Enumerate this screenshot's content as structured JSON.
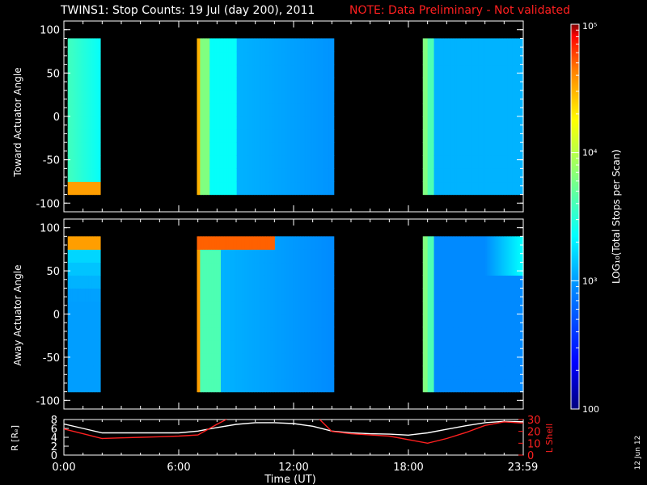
{
  "header": {
    "title": "TWINS1: Stop Counts: 19 Jul (day 200), 2011",
    "note": "NOTE: Data Preliminary - Not validated"
  },
  "side_stamp": "12 Jun 12",
  "colors": {
    "background": "#000000",
    "text": "#ffffff",
    "note": "#ff2020",
    "r_line": "#ffffff",
    "lshell_line": "#ff2020",
    "colormap": [
      "#00007f",
      "#0000ff",
      "#0080ff",
      "#00ffff",
      "#80ff80",
      "#ffff00",
      "#ff8000",
      "#ff0000",
      "#7f0000"
    ]
  },
  "chart_data": [
    {
      "type": "heatmap",
      "ylabel": "Toward Actuator Angle",
      "ylim": [
        -110,
        110
      ],
      "yticks": [
        "-100",
        "-50",
        "0",
        "50",
        "100"
      ],
      "ytick_values": [
        -100,
        -50,
        0,
        50,
        100
      ],
      "xlim_hours": [
        0,
        24
      ],
      "angle_range": [
        -90,
        90
      ],
      "data_intervals_hours": [
        [
          0.2,
          1.9
        ],
        [
          6.95,
          14.1
        ],
        [
          18.75,
          24
        ]
      ],
      "typical_log10_counts": 3.0
    },
    {
      "type": "heatmap",
      "ylabel": "Away Actuator Angle",
      "ylim": [
        -110,
        110
      ],
      "yticks": [
        "-100",
        "-50",
        "0",
        "50",
        "100"
      ],
      "ytick_values": [
        -100,
        -50,
        0,
        50,
        100
      ],
      "xlim_hours": [
        0,
        24
      ],
      "angle_range": [
        -90,
        90
      ],
      "data_intervals_hours": [
        [
          0.2,
          1.9
        ],
        [
          6.95,
          14.1
        ],
        [
          18.75,
          24
        ]
      ],
      "typical_log10_counts": 3.0
    },
    {
      "type": "colorbar",
      "label": "LOG₁₀(Total Stops per Scan)",
      "scale": "log",
      "range": [
        100,
        100000
      ],
      "ticks": [
        {
          "label": "10⁵",
          "value": 100000
        },
        {
          "label": "10⁴",
          "value": 10000
        },
        {
          "label": "10³",
          "value": 1000
        },
        {
          "label": "100",
          "value": 100
        }
      ]
    },
    {
      "type": "line",
      "xlabel": "Time (UT)",
      "xticks": [
        "0:00",
        "6:00",
        "12:00",
        "18:00",
        "23:59"
      ],
      "xtick_values": [
        0,
        6,
        12,
        18,
        23.98
      ],
      "xlim": [
        0,
        24
      ],
      "left_axis": {
        "label": "R [Rₑ]",
        "ylim": [
          0,
          8
        ],
        "ticks": [
          "0",
          "2",
          "4",
          "6",
          "8"
        ],
        "tick_values": [
          0,
          2,
          4,
          6,
          8
        ]
      },
      "right_axis": {
        "label": "L Shell",
        "ylim": [
          0,
          30
        ],
        "ticks": [
          "0",
          "10",
          "20",
          "30"
        ],
        "tick_values": [
          0,
          10,
          20,
          30
        ]
      },
      "series": [
        {
          "axis": "left",
          "x": [
            0,
            1,
            2,
            3,
            4,
            5,
            6,
            7,
            8,
            9,
            10,
            11,
            12,
            13,
            14,
            15,
            16,
            17,
            18,
            19,
            20,
            21,
            22,
            23,
            24
          ],
          "y": [
            7.0,
            6.0,
            5.0,
            5.0,
            5.0,
            5.0,
            5.0,
            5.4,
            6.2,
            6.9,
            7.3,
            7.3,
            7.1,
            6.5,
            5.4,
            5.0,
            4.8,
            4.7,
            4.5,
            5.0,
            5.8,
            6.6,
            7.3,
            7.6,
            7.5
          ]
        },
        {
          "axis": "right",
          "x": [
            0,
            1,
            2,
            3,
            4,
            5,
            6,
            7,
            8,
            8.6,
            13.3,
            14,
            15,
            16,
            17,
            18,
            19,
            20,
            21,
            22,
            23,
            24
          ],
          "y": [
            22,
            18,
            14,
            14.5,
            15,
            15.5,
            16,
            17,
            26,
            31,
            31,
            20,
            18,
            17,
            16,
            13,
            10,
            14,
            19,
            25,
            28,
            27
          ]
        }
      ]
    }
  ]
}
